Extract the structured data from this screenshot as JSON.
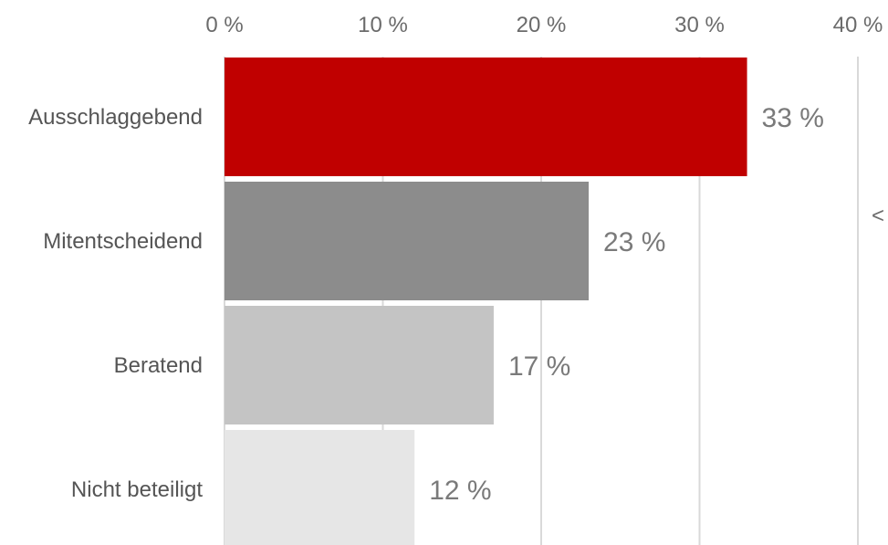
{
  "chart_data": {
    "type": "bar",
    "orientation": "horizontal",
    "categories": [
      "Ausschlaggebend",
      "Mitentscheidend",
      "Beratend",
      "Nicht beteiligt"
    ],
    "values": [
      33,
      23,
      17,
      12
    ],
    "value_labels": [
      "33 %",
      "23 %",
      "17 %",
      "12 %"
    ],
    "bar_colors": [
      "#c00000",
      "#8c8c8c",
      "#c4c4c4",
      "#e6e6e6"
    ],
    "xlim": [
      0,
      40
    ],
    "x_ticks": [
      0,
      10,
      20,
      30,
      40
    ],
    "x_tick_labels": [
      "0 %",
      "10 %",
      "20 %",
      "30 %",
      "40 %"
    ],
    "x_axis_position": "top",
    "grid": true,
    "title": "",
    "xlabel": "",
    "ylabel": "",
    "cut_off_glyph": "<"
  }
}
